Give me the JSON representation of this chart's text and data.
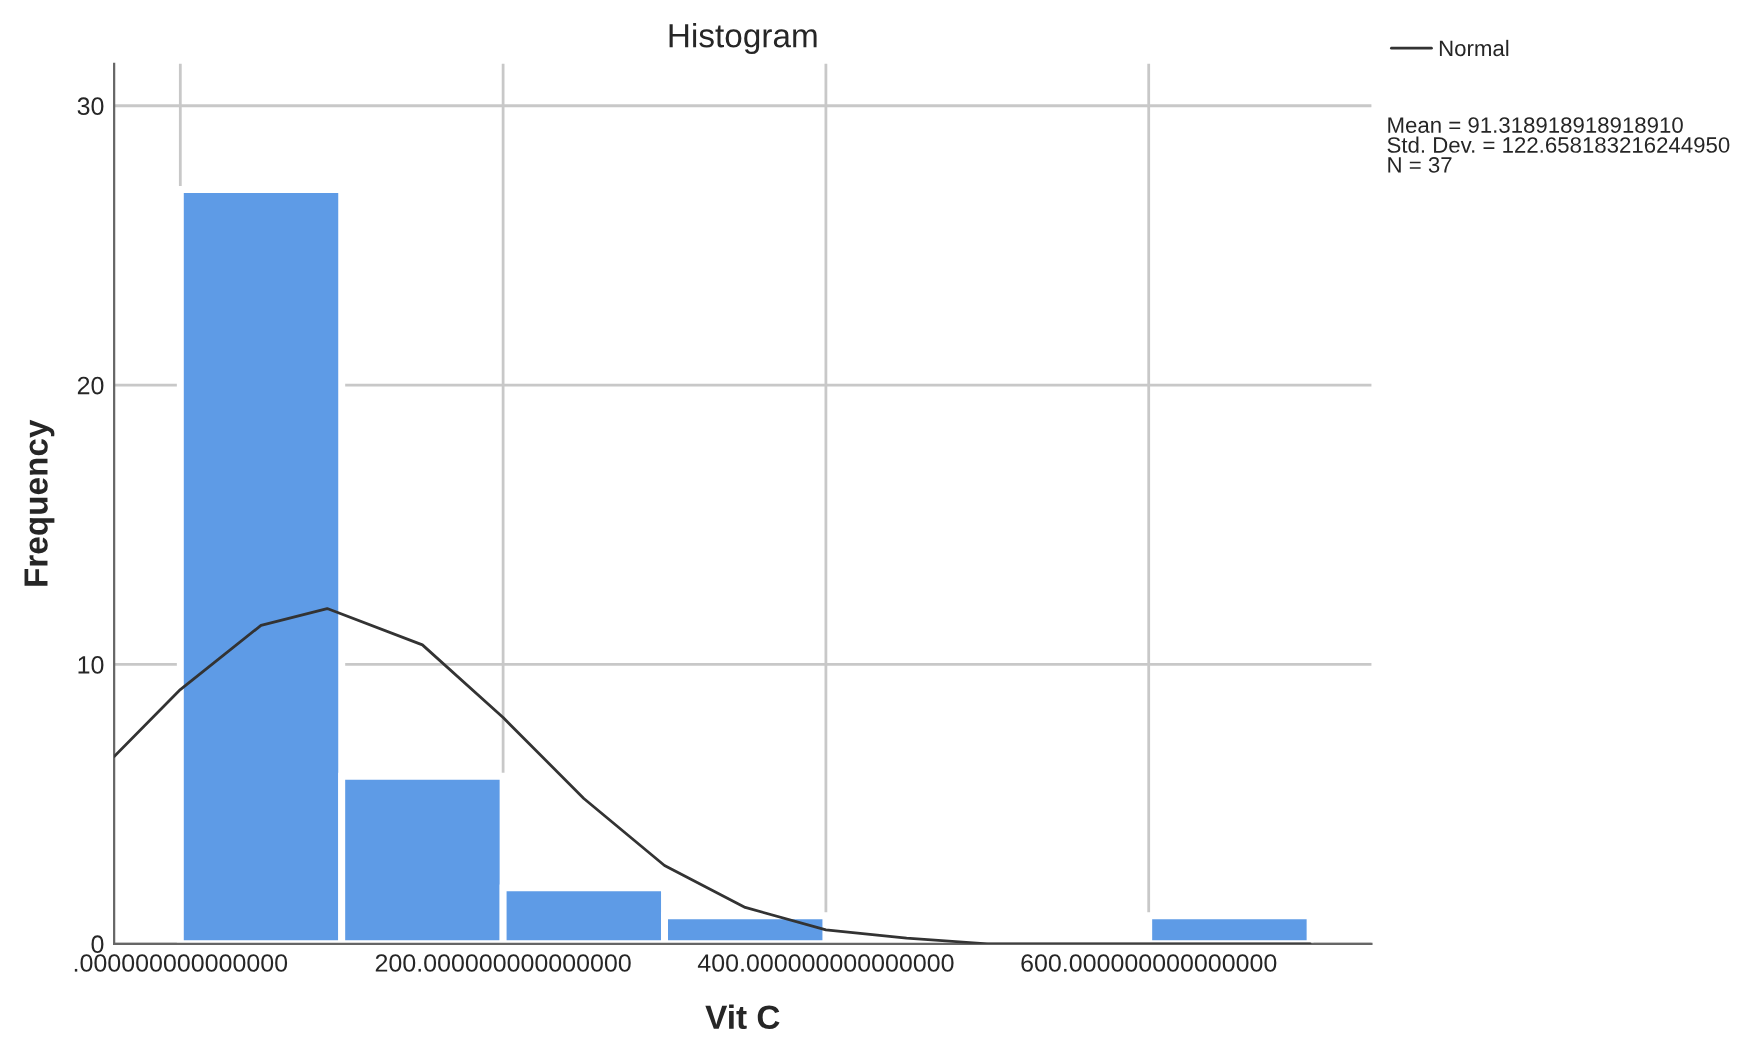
{
  "chart_data": {
    "type": "histogram",
    "title": "Histogram",
    "xlabel": "Vit C",
    "ylabel": "Frequency",
    "bins": [
      0,
      100,
      200,
      300,
      400,
      500,
      600,
      700
    ],
    "values": [
      27,
      6,
      2,
      1,
      0,
      0,
      1
    ],
    "color": "#5e9be6",
    "series": [
      {
        "name": "Normal",
        "type": "line",
        "color": "#333333",
        "x": [
          -41,
          0,
          50,
          91,
          150,
          200,
          250,
          300,
          350,
          400,
          450,
          500,
          600,
          700
        ],
        "values": [
          6.7,
          9.1,
          11.4,
          12.0,
          10.7,
          8.1,
          5.2,
          2.8,
          1.3,
          0.5,
          0.2,
          0.0,
          0.0,
          0.0
        ]
      }
    ],
    "xlim": [
      -41,
      738
    ],
    "xticks": [
      {
        "value": 0,
        "label": ".000000000000000"
      },
      {
        "value": 200,
        "label": "200.000000000000000"
      },
      {
        "value": 400,
        "label": "400.000000000000000"
      },
      {
        "value": 600,
        "label": "600.000000000000000"
      }
    ],
    "ylim": [
      0,
      31.5
    ],
    "yticks": [
      0,
      10,
      20,
      30
    ],
    "grid": true,
    "legend": "top right",
    "annotations": [
      "Mean = 91.318918918918910",
      "Std. Dev. = 122.658183216244950",
      "N = 37"
    ]
  }
}
